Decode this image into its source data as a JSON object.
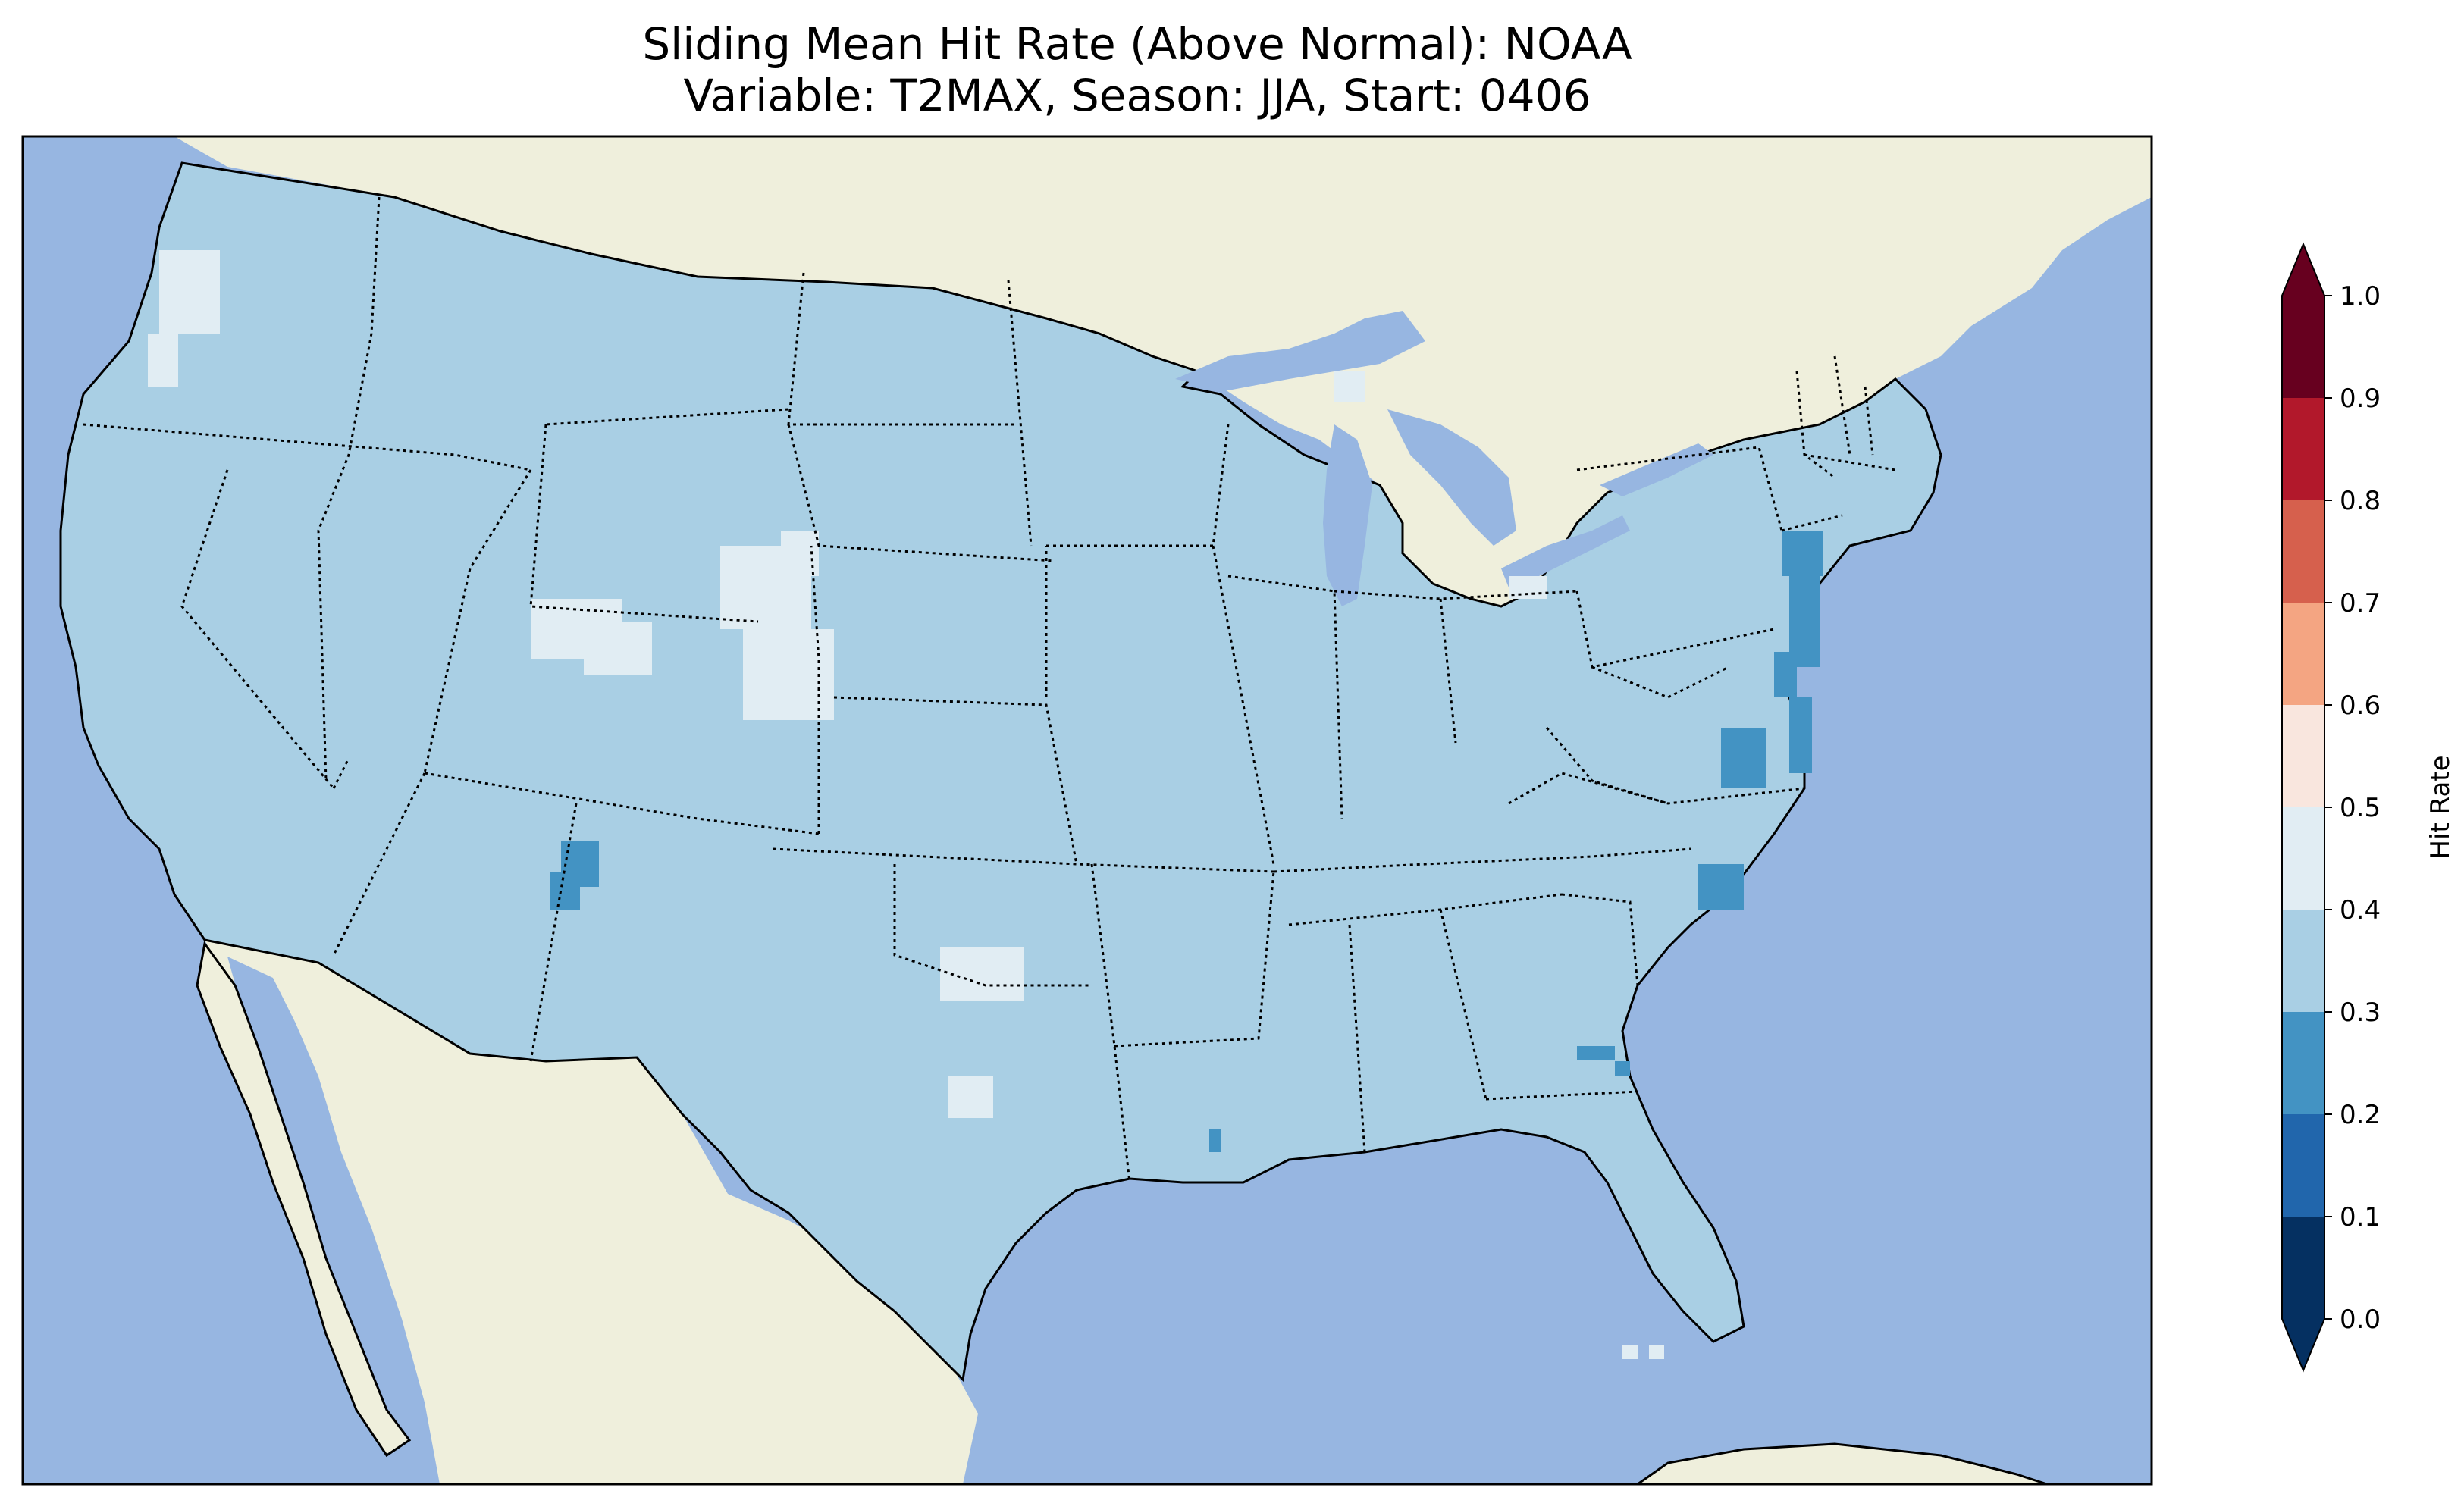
{
  "title": {
    "line1": "Sliding Mean Hit Rate (Above Normal): NOAA",
    "line2": "Variable: T2MAX, Season: JJA, Start: 0406"
  },
  "colors": {
    "ocean": "#97b6e1",
    "land": "#efefdc",
    "us_base": "#a9cfe4",
    "coast_line": "#000000",
    "border_line": "#000000"
  },
  "colorbar": {
    "label": "Hit Rate",
    "min": 0.0,
    "max": 1.0,
    "extend": "both",
    "ticks": [
      "0.0",
      "0.1",
      "0.2",
      "0.3",
      "0.4",
      "0.5",
      "0.6",
      "0.7",
      "0.8",
      "0.9",
      "1.0"
    ],
    "bins": [
      {
        "from": 0.0,
        "to": 0.1,
        "color": "#053061"
      },
      {
        "from": 0.1,
        "to": 0.2,
        "color": "#2166ac"
      },
      {
        "from": 0.2,
        "to": 0.3,
        "color": "#4393c3"
      },
      {
        "from": 0.3,
        "to": 0.4,
        "color": "#a9cfe4"
      },
      {
        "from": 0.4,
        "to": 0.5,
        "color": "#e1edf3"
      },
      {
        "from": 0.5,
        "to": 0.6,
        "color": "#f9e6de"
      },
      {
        "from": 0.6,
        "to": 0.7,
        "color": "#f4a582"
      },
      {
        "from": 0.7,
        "to": 0.8,
        "color": "#d6604d"
      },
      {
        "from": 0.8,
        "to": 0.9,
        "color": "#b2182b"
      },
      {
        "from": 0.9,
        "to": 1.0,
        "color": "#67001f"
      }
    ],
    "under_color": "#053061",
    "over_color": "#67001f"
  },
  "map_data": {
    "region": "Contiguous United States",
    "dominant_bin": "0.3-0.4",
    "anomalies": [
      {
        "area": "Western Washington / Oregon coast",
        "bin": "0.4-0.5"
      },
      {
        "area": "Southwest Wyoming",
        "bin": "0.4-0.5"
      },
      {
        "area": "Eastern Wyoming / Colorado border",
        "bin": "0.4-0.5"
      },
      {
        "area": "Oklahoma / Texas panhandle border",
        "bin": "0.4-0.5"
      },
      {
        "area": "West-central Texas",
        "bin": "0.4-0.5"
      },
      {
        "area": "Northern Ohio",
        "bin": "0.4-0.5"
      },
      {
        "area": "Upper Michigan",
        "bin": "0.4-0.5"
      },
      {
        "area": "Western New Mexico",
        "bin": "0.2-0.3"
      },
      {
        "area": "New Jersey / Delmarva coast",
        "bin": "0.2-0.3"
      },
      {
        "area": "Southeast Virginia / Outer Banks",
        "bin": "0.2-0.3"
      },
      {
        "area": "North Carolina coast",
        "bin": "0.2-0.3"
      },
      {
        "area": "Southern Georgia",
        "bin": "0.2-0.3"
      },
      {
        "area": "Southern Louisiana",
        "bin": "0.2-0.3"
      }
    ]
  }
}
